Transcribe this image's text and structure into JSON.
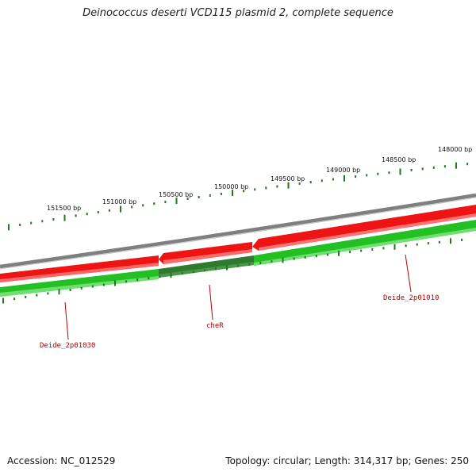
{
  "title": "Deinococcus deserti VCD115 plasmid 2, complete sequence",
  "footer": {
    "accession": "Accession: NC_012529",
    "topology": "Topology: circular; Length: 314,317 bp; Genes: 250"
  },
  "scale_labels": [
    "148000 bp",
    "148500 bp",
    "149000 bp",
    "149500 bp",
    "150000 bp",
    "150500 bp",
    "151000 bp",
    "151500 bp"
  ],
  "gene_labels": [
    "Deide_2p01010",
    "cheR",
    "Deide_2p01030"
  ],
  "colors": {
    "backbone": "#858585",
    "reverse_strand": "#ee1111",
    "forward_strand": "#22bb22",
    "selected_gene": "#2f7a2f",
    "tick": "#1f7a1f",
    "label": "#c00000"
  }
}
